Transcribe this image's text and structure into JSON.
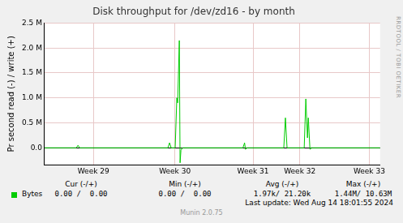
{
  "chart_data": {
    "type": "line",
    "title": "Disk throughput for /dev/zd16 - by month",
    "y_label": "Pr second read (-) / write (+)",
    "x": [
      0,
      2.93,
      3.08,
      3.23,
      11.36,
      11.51,
      11.66,
      12.03,
      12.18,
      12.26,
      12.41,
      12.48,
      12.56,
      12.71,
      18.27,
      18.42,
      18.5,
      18.65,
      22.03,
      22.18,
      22.33,
      23.91,
      24.06,
      24.21,
      24.29,
      24.44,
      24.59,
      30.9
    ],
    "series": [
      {
        "name": "Bytes",
        "color": "#00CC00",
        "values": [
          0,
          0,
          50000,
          0,
          0,
          100000,
          0,
          0,
          1000000,
          900000,
          2150000,
          -300000,
          -50000,
          0,
          0,
          100000,
          -30000,
          0,
          0,
          600000,
          0,
          0,
          980000,
          200000,
          600000,
          -30000,
          0,
          0
        ]
      }
    ],
    "xlim": [
      0,
      30.9
    ],
    "xticks": [
      {
        "value": 4.5,
        "label": "Week 29"
      },
      {
        "value": 12.0,
        "label": "Week 30"
      },
      {
        "value": 19.2,
        "label": "Week 31"
      },
      {
        "value": 23.5,
        "label": "Week 32"
      },
      {
        "value": 29.9,
        "label": "Week 33"
      }
    ],
    "ylim": [
      -340000,
      2500000
    ],
    "yticks": [
      {
        "value": 0,
        "label": "0.0"
      },
      {
        "value": 500000,
        "label": "0.5 M"
      },
      {
        "value": 1000000,
        "label": "1.0 M"
      },
      {
        "value": 1500000,
        "label": "1.5 M"
      },
      {
        "value": 2000000,
        "label": "2.0 M"
      },
      {
        "value": 2500000,
        "label": "2.5 M"
      }
    ],
    "grid": true,
    "side_text": "RRDTOOL / TOBI OETIKER",
    "legend_table": {
      "columns": [
        "Cur (-/+)",
        "Min (-/+)",
        "Avg (-/+)",
        "Max (-/+)"
      ],
      "rows": [
        {
          "name": "Bytes",
          "cells": [
            "0.00 /  0.00",
            "0.00 /  0.00",
            "1.97k/ 21.20k",
            "1.44M/ 10.63M"
          ]
        }
      ]
    },
    "footer": "Last update: Wed Aug 14 18:01:55 2024",
    "credit": "Munin 2.0.75"
  }
}
